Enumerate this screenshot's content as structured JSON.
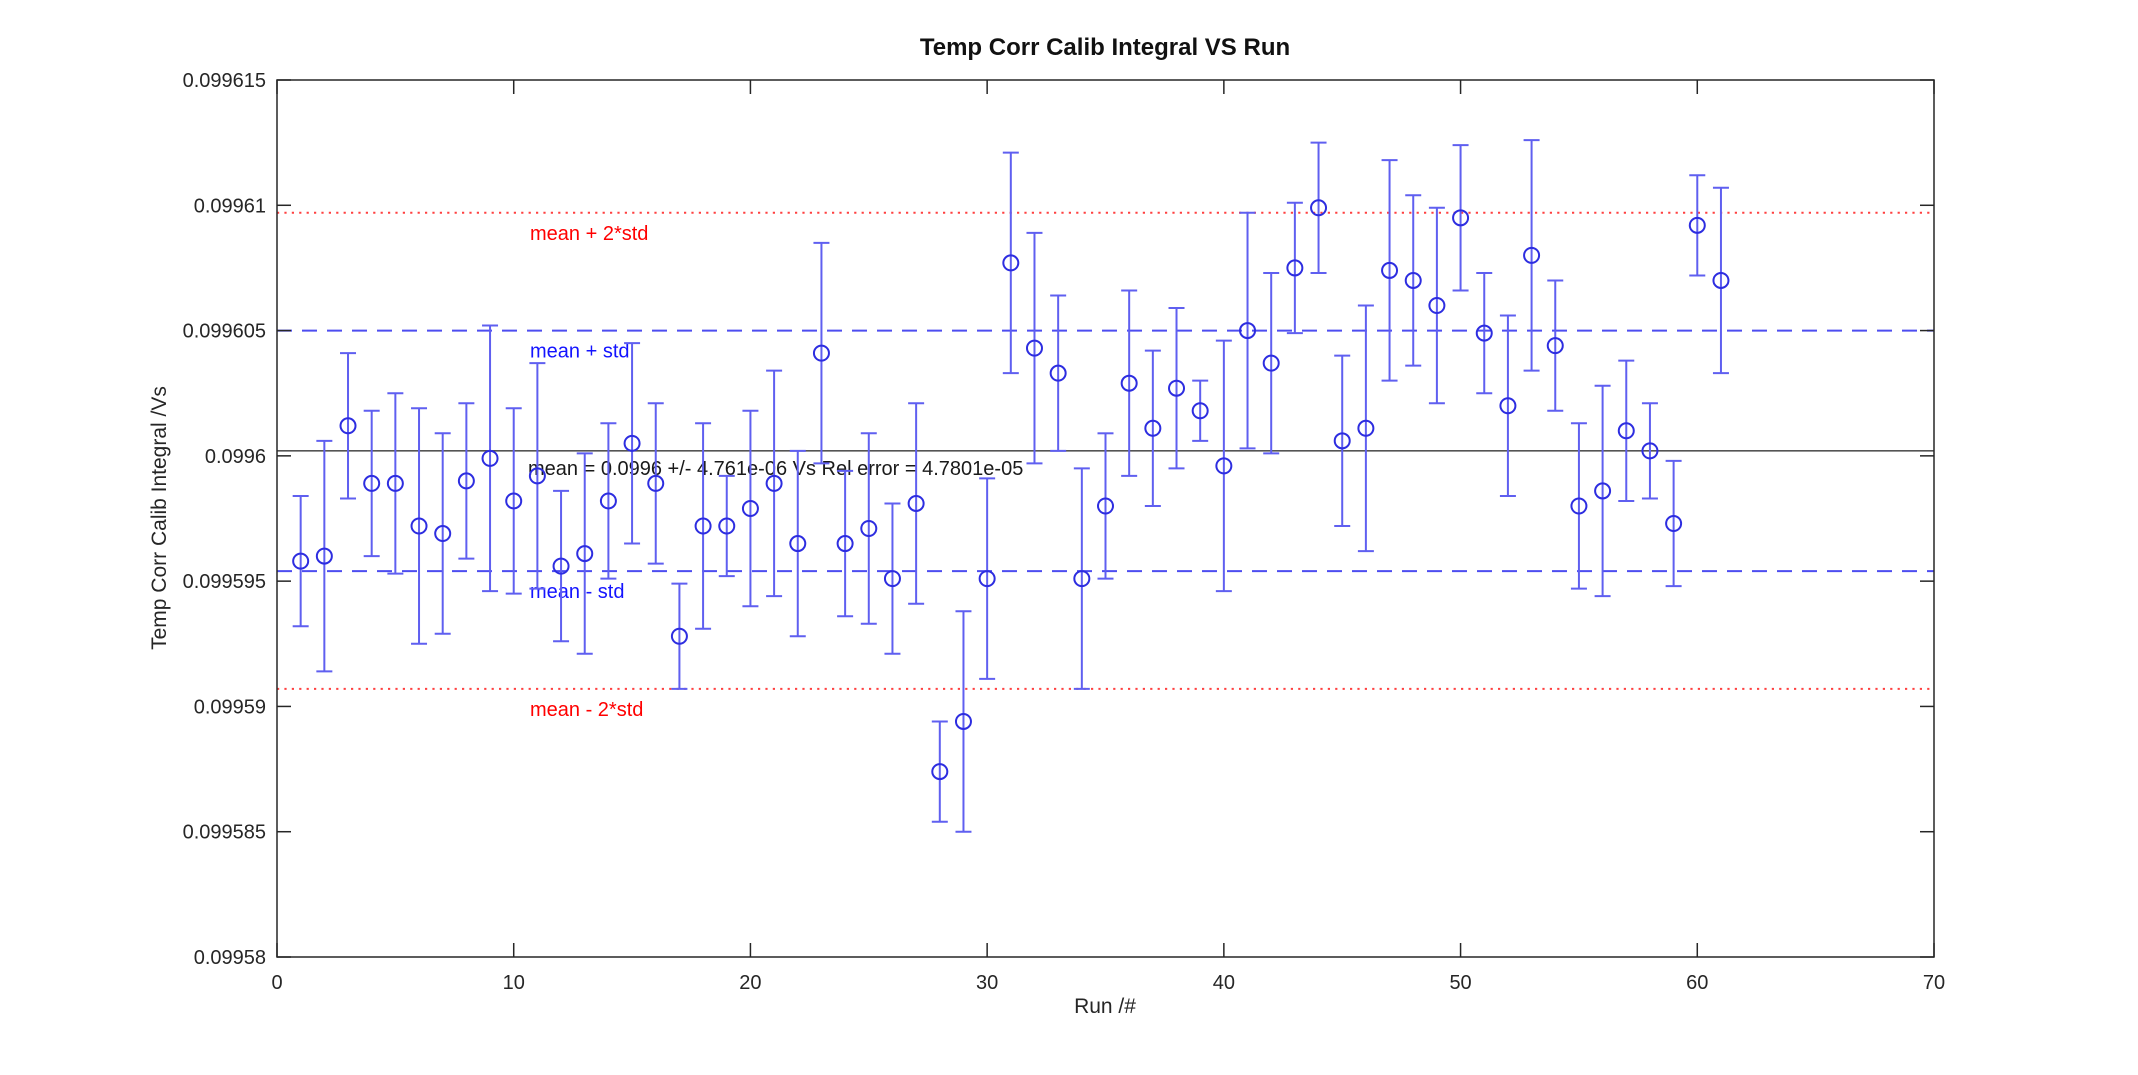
{
  "figure": {
    "title": "Temp Corr Calib Integral VS Run",
    "xlabel": "Run /#",
    "ylabel": "Temp Corr Calib Integral /Vs"
  },
  "chart_data": {
    "type": "scatter",
    "subtype": "errorbar",
    "title": "Temp Corr Calib Integral VS Run",
    "xlabel": "Run /#",
    "ylabel": "Temp Corr Calib Integral /Vs",
    "xlim": [
      0,
      70
    ],
    "ylim": [
      0.09958,
      0.099615
    ],
    "grid": false,
    "x_ticks": [
      0,
      10,
      20,
      30,
      40,
      50,
      60,
      70
    ],
    "x_tick_labels": [
      "0",
      "10",
      "20",
      "30",
      "40",
      "50",
      "60",
      "70"
    ],
    "y_ticks": [
      0.09958,
      0.099585,
      0.09959,
      0.099595,
      0.0996,
      0.099605,
      0.09961,
      0.099615
    ],
    "y_tick_labels": [
      "0.09958",
      "0.099585",
      "0.09959",
      "0.099595",
      "0.0996",
      "0.099605",
      "0.09961",
      "0.099615"
    ],
    "series": [
      {
        "name": "calib-integral-vs-run",
        "marker": "o",
        "x": [
          1,
          2,
          3,
          4,
          5,
          6,
          7,
          8,
          9,
          10,
          11,
          12,
          13,
          14,
          15,
          16,
          17,
          18,
          19,
          20,
          21,
          22,
          23,
          24,
          25,
          26,
          27,
          28,
          29,
          30,
          31,
          32,
          33,
          34,
          35,
          36,
          37,
          38,
          39,
          40,
          41,
          42,
          43,
          44,
          45,
          46,
          47,
          48,
          49,
          50,
          51,
          52,
          53,
          54,
          55,
          56,
          57,
          58,
          59,
          60,
          61
        ],
        "y": [
          0.0995958,
          0.099596,
          0.0996012,
          0.0995989,
          0.0995989,
          0.0995972,
          0.0995969,
          0.099599,
          0.0995999,
          0.0995982,
          0.0995992,
          0.0995956,
          0.0995961,
          0.0995982,
          0.0996005,
          0.0995989,
          0.0995928,
          0.0995972,
          0.0995972,
          0.0995979,
          0.0995989,
          0.0995965,
          0.0996041,
          0.0995965,
          0.0995971,
          0.0995951,
          0.0995981,
          0.0995874,
          0.0995894,
          0.0995951,
          0.0996077,
          0.0996043,
          0.0996033,
          0.0995951,
          0.099598,
          0.0996029,
          0.0996011,
          0.0996027,
          0.0996018,
          0.0995996,
          0.099605,
          0.0996037,
          0.0996075,
          0.0996099,
          0.0996006,
          0.0996011,
          0.0996074,
          0.099607,
          0.099606,
          0.0996095,
          0.0996049,
          0.099602,
          0.099608,
          0.0996044,
          0.099598,
          0.0995986,
          0.099601,
          0.0996002,
          0.0995973,
          0.0996092,
          0.099607
        ],
        "yerr": [
          2.6e-06,
          4.6e-06,
          2.9e-06,
          2.9e-06,
          3.6e-06,
          4.7e-06,
          4e-06,
          3.1e-06,
          5.3e-06,
          3.7e-06,
          4.5e-06,
          3e-06,
          4e-06,
          3.1e-06,
          4e-06,
          3.2e-06,
          2.1e-06,
          4.1e-06,
          2e-06,
          3.9e-06,
          4.5e-06,
          3.7e-06,
          4.4e-06,
          2.9e-06,
          3.8e-06,
          3e-06,
          4e-06,
          2e-06,
          4.4e-06,
          4e-06,
          4.4e-06,
          4.6e-06,
          3.1e-06,
          4.4e-06,
          2.9e-06,
          3.7e-06,
          3.1e-06,
          3.2e-06,
          1.2e-06,
          5e-06,
          4.7e-06,
          3.6e-06,
          2.6e-06,
          2.6e-06,
          3.4e-06,
          4.9e-06,
          4.4e-06,
          3.4e-06,
          3.9e-06,
          2.9e-06,
          2.4e-06,
          3.6e-06,
          4.6e-06,
          2.6e-06,
          3.3e-06,
          4.2e-06,
          2.8e-06,
          1.9e-06,
          2.5e-06,
          2e-06,
          3.7e-06
        ]
      }
    ],
    "reference_lines": [
      {
        "name": "mean-plus-2std",
        "value": 0.0996097,
        "label": "mean + 2*std",
        "style": "dotted",
        "line_color": "#ff4040",
        "label_color": "#ff0000"
      },
      {
        "name": "mean-plus-std",
        "value": 0.099605,
        "label": "mean + std",
        "style": "dashed",
        "line_color": "#4d4df0",
        "label_color": "#1414ff"
      },
      {
        "name": "mean",
        "value": 0.0996002,
        "label": "",
        "style": "solid",
        "line_color": "#555555",
        "label_color": "#1a1a1a"
      },
      {
        "name": "mean-minus-std",
        "value": 0.0995954,
        "label": "mean - std",
        "style": "dashed",
        "line_color": "#4d4df0",
        "label_color": "#1414ff"
      },
      {
        "name": "mean-minus-2std",
        "value": 0.0995907,
        "label": "mean - 2*std",
        "style": "dotted",
        "line_color": "#ff4040",
        "label_color": "#ff0000"
      }
    ],
    "annotation": {
      "text": "mean = 0.0996 +/- 4.761e-06 Vs Rel error = 4.7801e-05",
      "mean": "0.0996",
      "uncertainty": "4.761e-06",
      "rel_error": "4.7801e-05"
    },
    "legend": null
  },
  "colors": {
    "marker": "#2d2de0",
    "errorbar": "#5f5ff0",
    "axis": "#262626",
    "tick_label": "#262626",
    "annotation_text": "#1a1a1a",
    "background": "#ffffff"
  }
}
